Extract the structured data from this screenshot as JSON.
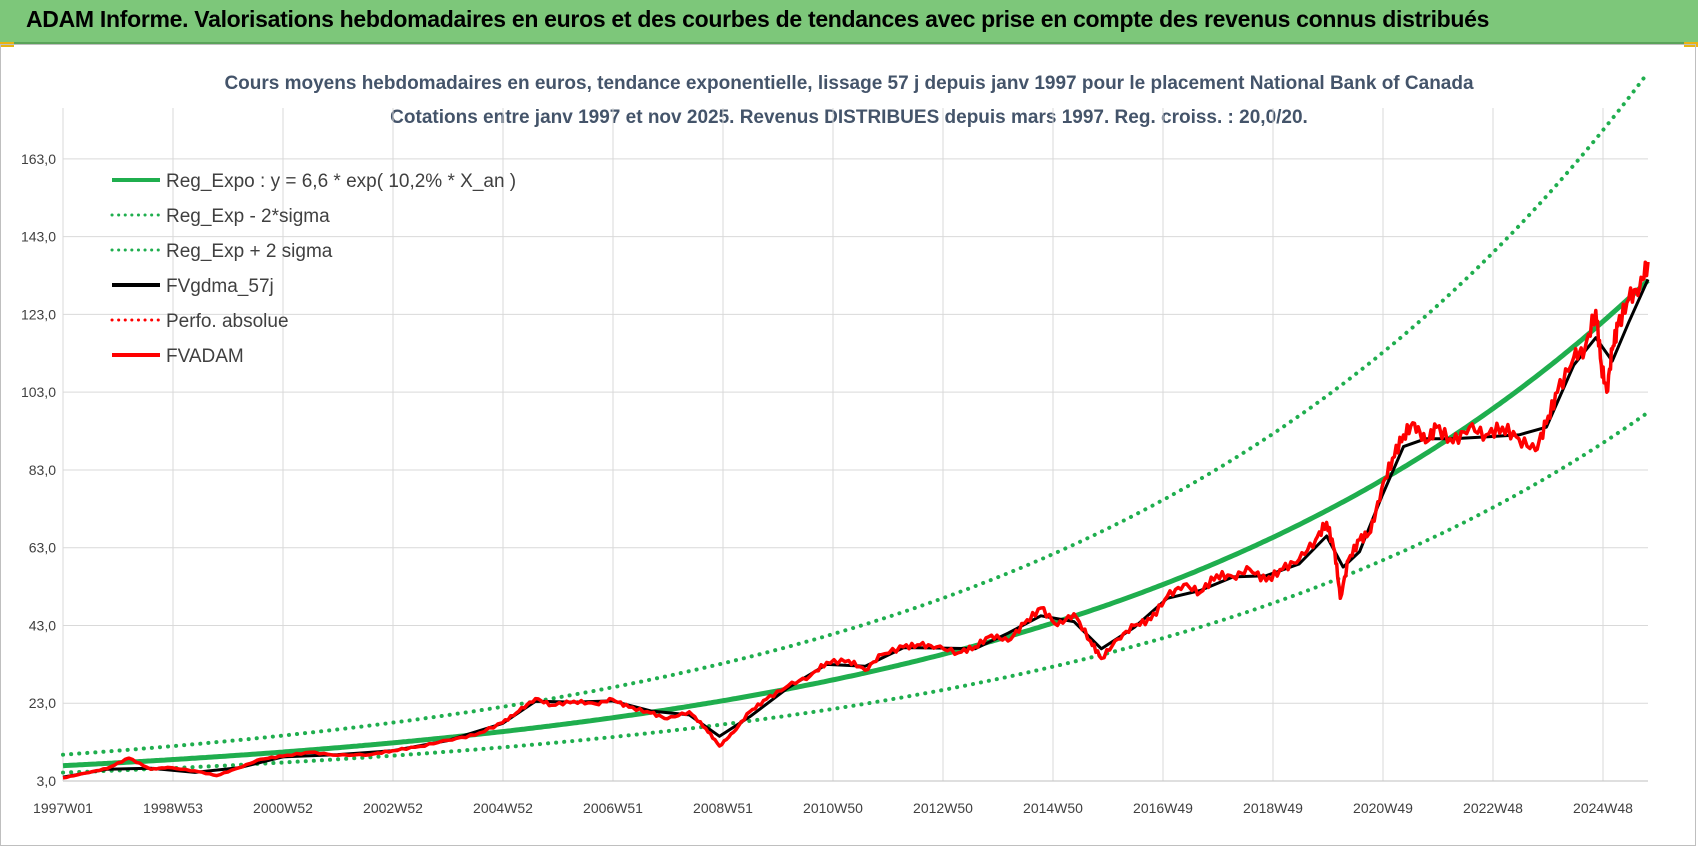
{
  "header": {
    "title": "ADAM Informe. Valorisations hebdomadaires en euros et des courbes de tendances avec prise en compte des revenus connus distribués"
  },
  "colors": {
    "banner": "#7dc77a",
    "trend": "#1fae4e",
    "smooth": "#000000",
    "fvadam": "#ff0000"
  },
  "chart_data": {
    "type": "line",
    "title": "Cours moyens hebdomadaires en euros, tendance exponentielle, lissage 57 j depuis janv 1997 pour le placement National Bank of Canada",
    "subtitle": "Cotations entre janv 1997 et nov 2025. Revenus DISTRIBUES depuis mars 1997. Reg. croiss. : 20,0/20.",
    "x_ticks": [
      "1997W01",
      "1998W53",
      "2000W52",
      "2002W52",
      "2004W52",
      "2006W51",
      "2008W51",
      "2010W50",
      "2012W50",
      "2014W50",
      "2016W49",
      "2018W49",
      "2020W49",
      "2022W48",
      "2024W48"
    ],
    "y_ticks": [
      "3,0",
      "23,0",
      "43,0",
      "63,0",
      "83,0",
      "103,0",
      "123,0",
      "143,0",
      "163,0"
    ],
    "ylim": [
      3,
      173
    ],
    "xlim": [
      1997.0,
      2025.85
    ],
    "grid": true,
    "legend_position": "top-left",
    "legend": [
      {
        "label": "Reg_Expo : y = 6,6 * exp( 10,2% *  X_an )",
        "style": "solid",
        "color": "#1fae4e"
      },
      {
        "label": "Reg_Exp - 2*sigma",
        "style": "dotted",
        "color": "#1fae4e"
      },
      {
        "label": "Reg_Exp + 2 sigma",
        "style": "dotted",
        "color": "#1fae4e"
      },
      {
        "label": "FVgdma_57j",
        "style": "solid",
        "color": "#000000"
      },
      {
        "label": "Perfo. absolue",
        "style": "dotted",
        "color": "#ff0000"
      },
      {
        "label": "FVADAM",
        "style": "solid",
        "color": "#ff0000"
      }
    ],
    "trend": {
      "a": 6.6,
      "b": 0.102,
      "x0": 1996.5
    },
    "band_upper": {
      "a": 9.28,
      "b": 0.102,
      "x0": 1996.5
    },
    "band_lower": {
      "a": 4.9,
      "b": 0.102,
      "x0": 1996.5
    },
    "series": [
      {
        "name": "FVADAM",
        "x": [
          1997.0,
          1997.4,
          1997.8,
          1998.2,
          1998.6,
          1998.9,
          1999.4,
          1999.8,
          2000.2,
          2000.6,
          2001.0,
          2001.5,
          2002.0,
          2002.6,
          2003.0,
          2003.5,
          2004.0,
          2004.5,
          2005.0,
          2005.3,
          2005.6,
          2005.9,
          2006.3,
          2006.7,
          2007.0,
          2007.3,
          2007.7,
          2008.0,
          2008.4,
          2008.7,
          2008.95,
          2009.2,
          2009.5,
          2009.8,
          2010.2,
          2010.6,
          2010.9,
          2011.3,
          2011.6,
          2011.9,
          2012.3,
          2012.6,
          2012.9,
          2013.3,
          2013.6,
          2013.9,
          2014.2,
          2014.5,
          2014.8,
          2015.1,
          2015.4,
          2015.7,
          2015.9,
          2016.2,
          2016.5,
          2016.8,
          2017.1,
          2017.4,
          2017.7,
          2018.0,
          2018.3,
          2018.6,
          2018.9,
          2019.2,
          2019.5,
          2019.8,
          2020.0,
          2020.15,
          2020.25,
          2020.4,
          2020.6,
          2020.8,
          2021.0,
          2021.2,
          2021.4,
          2021.6,
          2021.8,
          2022.0,
          2022.3,
          2022.6,
          2022.9,
          2023.2,
          2023.5,
          2023.8,
          2024.0,
          2024.2,
          2024.5,
          2024.7,
          2024.9,
          2025.0,
          2025.1,
          2025.2,
          2025.3,
          2025.5,
          2025.7,
          2025.85
        ],
        "values": [
          3.8,
          5.0,
          6.2,
          8.9,
          6.0,
          6.5,
          5.6,
          4.4,
          6.4,
          8.6,
          9.4,
          10.4,
          9.6,
          9.8,
          10.8,
          11.9,
          13.5,
          14.8,
          18.0,
          21.0,
          24.2,
          22.5,
          23.5,
          22.8,
          24.0,
          22.0,
          20.5,
          19.0,
          20.8,
          16.5,
          12.0,
          15.5,
          20.8,
          24.0,
          27.5,
          30.0,
          33.5,
          34.0,
          31.5,
          35.5,
          37.5,
          38.0,
          37.5,
          36.0,
          37.5,
          40.5,
          39.0,
          43.5,
          47.5,
          43.0,
          46.0,
          39.0,
          34.5,
          39.5,
          43.0,
          44.5,
          50.5,
          53.5,
          51.5,
          56.0,
          55.5,
          57.5,
          54.5,
          57.5,
          60.0,
          65.0,
          69.5,
          62.0,
          50.0,
          60.0,
          65.0,
          67.0,
          78.0,
          86.0,
          92.0,
          95.0,
          90.0,
          94.0,
          90.0,
          94.0,
          92.0,
          94.0,
          91.0,
          88.0,
          95.0,
          103.0,
          112.0,
          114.0,
          124.0,
          110.0,
          103.0,
          114.0,
          120.0,
          127.0,
          130.0,
          136.5
        ]
      },
      {
        "name": "FVgdma_57j",
        "x": [
          1997.0,
          1997.8,
          1998.6,
          1999.4,
          2000.2,
          2001.0,
          2002.0,
          2003.0,
          2004.0,
          2005.0,
          2005.6,
          2006.3,
          2007.0,
          2007.7,
          2008.4,
          2008.95,
          2009.5,
          2010.2,
          2010.9,
          2011.6,
          2012.3,
          2012.9,
          2013.6,
          2014.2,
          2014.8,
          2015.4,
          2015.9,
          2016.5,
          2017.1,
          2017.7,
          2018.3,
          2018.9,
          2019.5,
          2020.0,
          2020.3,
          2020.6,
          2021.0,
          2021.4,
          2021.8,
          2022.3,
          2022.9,
          2023.5,
          2024.0,
          2024.5,
          2024.9,
          2025.2,
          2025.5,
          2025.85
        ],
        "values": [
          4.0,
          6.0,
          6.3,
          5.2,
          6.4,
          9.2,
          9.8,
          10.8,
          13.4,
          17.8,
          23.5,
          23.3,
          23.6,
          21.0,
          20.0,
          14.5,
          19.5,
          27.0,
          33.0,
          32.5,
          37.3,
          37.2,
          37.0,
          41.0,
          45.5,
          44.0,
          37.0,
          42.5,
          50.0,
          52.0,
          55.5,
          55.8,
          58.8,
          66.0,
          58.0,
          62.0,
          76.0,
          89.0,
          91.0,
          91.0,
          91.5,
          92.0,
          94.0,
          110.0,
          117.0,
          111.0,
          121.0,
          132.0
        ]
      }
    ]
  }
}
